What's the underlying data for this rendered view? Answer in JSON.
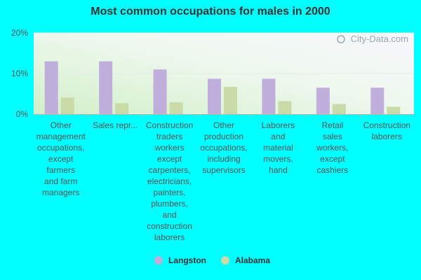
{
  "chart_data": {
    "type": "bar",
    "title": "Most common occupations for males in 2000",
    "categories": [
      "Other management occupations, except farmers and farm managers",
      "Sales repr...",
      "Construction traders workers except carpenters, electricians, painters, plumbers, and construction laborers",
      "Other production occupations, including supervisors",
      "Laborers and material movers, hand",
      "Retail sales workers, except cashiers",
      "Construction laborers"
    ],
    "category_lines": [
      [
        "Other",
        "management",
        "occupations,",
        "except",
        "farmers",
        "and farm",
        "managers"
      ],
      [
        "Sales repr..."
      ],
      [
        "Construction",
        "traders",
        "workers",
        "except",
        "carpenters,",
        "electricians,",
        "painters,",
        "plumbers,",
        "and",
        "construction",
        "laborers"
      ],
      [
        "Other",
        "production",
        "occupations,",
        "including",
        "supervisors"
      ],
      [
        "Laborers",
        "and",
        "material",
        "movers,",
        "hand"
      ],
      [
        "Retail",
        "sales",
        "workers,",
        "except",
        "cashiers"
      ],
      [
        "Construction",
        "laborers"
      ]
    ],
    "series": [
      {
        "name": "Langston",
        "color": "#c0aedd",
        "values": [
          13.0,
          13.0,
          11.0,
          8.7,
          8.7,
          6.5,
          6.5
        ]
      },
      {
        "name": "Alabama",
        "color": "#c9dba9",
        "values": [
          4.1,
          2.7,
          2.9,
          6.7,
          3.2,
          2.5,
          1.8
        ]
      }
    ],
    "ylim": [
      0,
      20
    ],
    "yticks": [
      0,
      10,
      20
    ],
    "ytick_labels": [
      "0%",
      "10%",
      "20%"
    ],
    "legend_position": "bottom-center",
    "watermark": "City-Data.com"
  }
}
